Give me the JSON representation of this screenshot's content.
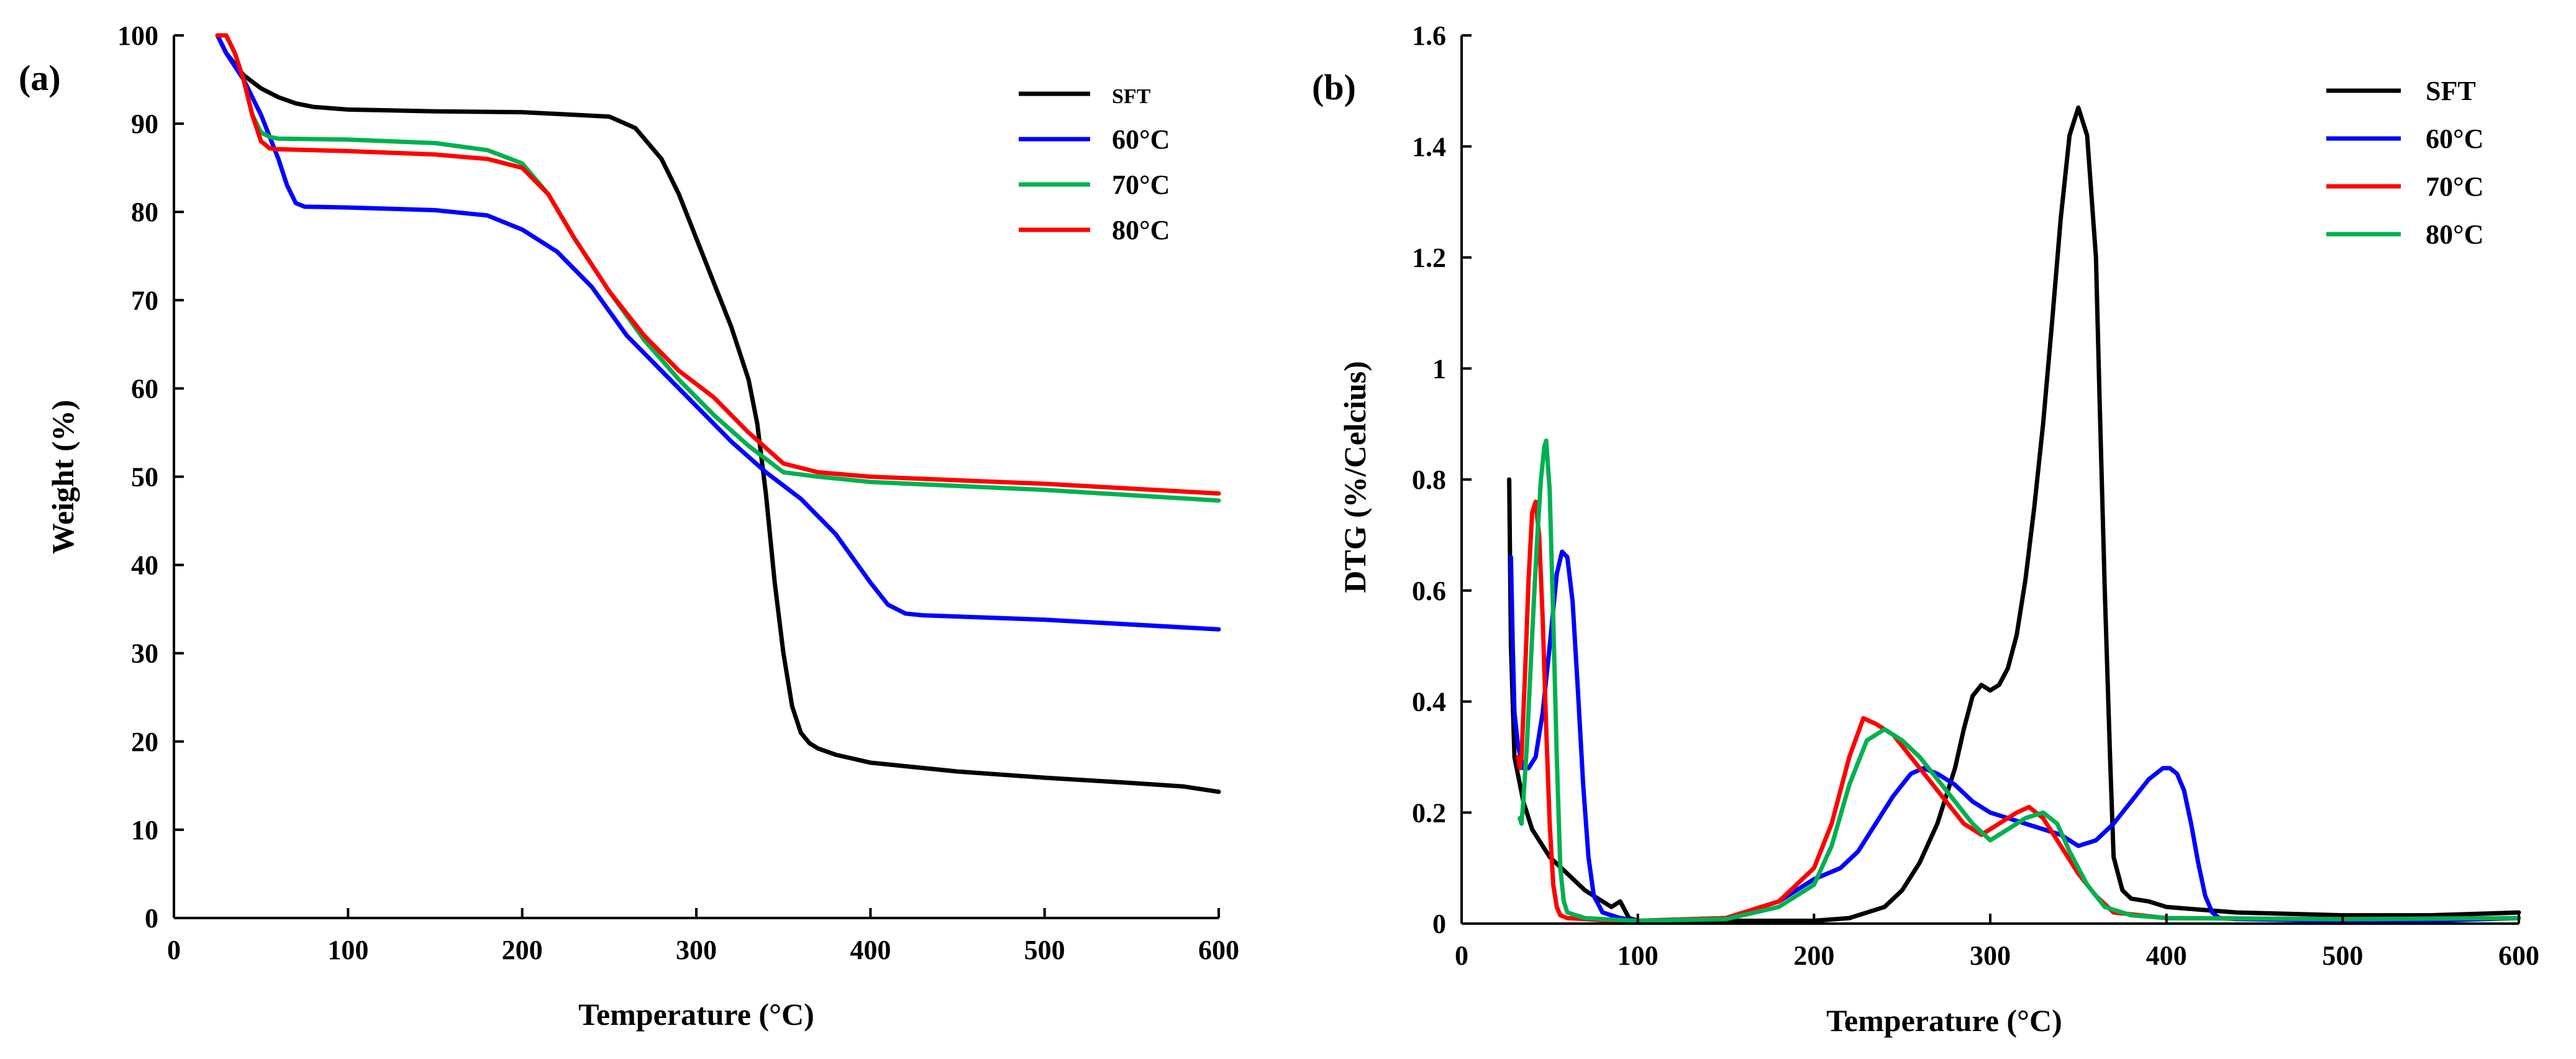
{
  "chart_data": [
    {
      "type": "line",
      "panel_label": "(a)",
      "xlabel": "Temperature  (°C)",
      "ylabel": "Weight (%)",
      "xlim": [
        0,
        600
      ],
      "ylim": [
        0,
        100
      ],
      "xticks": [
        0,
        100,
        200,
        300,
        400,
        500,
        600
      ],
      "yticks": [
        0,
        10,
        20,
        30,
        40,
        50,
        60,
        70,
        80,
        90,
        100
      ],
      "legend_position": "top-right",
      "series": [
        {
          "name": "SFT",
          "color": "#000000",
          "x": [
            25,
            30,
            40,
            50,
            60,
            70,
            80,
            100,
            150,
            200,
            250,
            265,
            280,
            290,
            300,
            310,
            320,
            330,
            335,
            340,
            345,
            350,
            355,
            360,
            365,
            370,
            380,
            400,
            450,
            500,
            550,
            580,
            600
          ],
          "y": [
            100,
            98,
            95.5,
            94,
            93,
            92.3,
            91.9,
            91.6,
            91.4,
            91.3,
            90.8,
            89.5,
            86,
            82,
            77,
            72,
            67,
            61,
            56,
            48,
            38,
            30,
            24,
            21,
            19.8,
            19.2,
            18.5,
            17.6,
            16.6,
            15.9,
            15.3,
            14.9,
            14.3
          ]
        },
        {
          "name": "60°C",
          "color": "#0000ff",
          "x": [
            25,
            30,
            40,
            50,
            60,
            65,
            70,
            75,
            100,
            150,
            180,
            200,
            220,
            240,
            260,
            280,
            300,
            320,
            340,
            360,
            380,
            400,
            410,
            420,
            430,
            500,
            600
          ],
          "y": [
            100,
            98,
            95,
            91,
            86,
            83,
            81,
            80.6,
            80.5,
            80.2,
            79.6,
            78,
            75.5,
            71.5,
            66,
            62,
            58,
            54,
            50.5,
            47.5,
            43.5,
            38,
            35.5,
            34.5,
            34.3,
            33.8,
            32.7
          ]
        },
        {
          "name": "70°C",
          "color": "#00b050",
          "x": [
            30,
            35,
            40,
            45,
            50,
            55,
            60,
            100,
            150,
            180,
            200,
            215,
            230,
            250,
            270,
            290,
            310,
            330,
            350,
            370,
            400,
            500,
            600
          ],
          "y": [
            100,
            98,
            95,
            91,
            89,
            88.5,
            88.3,
            88.2,
            87.8,
            87,
            85.5,
            82,
            77,
            71,
            65.5,
            61,
            57,
            53.5,
            50.5,
            50,
            49.4,
            48.5,
            47.3
          ]
        },
        {
          "name": "80°C",
          "color": "#ff0000",
          "x": [
            25,
            30,
            35,
            40,
            45,
            50,
            55,
            60,
            100,
            150,
            180,
            200,
            215,
            230,
            250,
            270,
            290,
            310,
            330,
            350,
            370,
            400,
            500,
            600
          ],
          "y": [
            100,
            100,
            98,
            95,
            91,
            88,
            87.2,
            87.1,
            86.9,
            86.5,
            86,
            85,
            82,
            77,
            71,
            66,
            62,
            59,
            55,
            51.5,
            50.5,
            50,
            49.2,
            48.1
          ]
        }
      ]
    },
    {
      "type": "line",
      "panel_label": "(b)",
      "xlabel": "Temperature  (°C)",
      "ylabel": "DTG  (%/Celcius)",
      "xlim": [
        0,
        600
      ],
      "ylim": [
        0,
        1.6
      ],
      "xticks": [
        0,
        100,
        200,
        300,
        400,
        500,
        600
      ],
      "yticks": [
        0,
        0.2,
        0.4,
        0.6,
        0.8,
        1,
        1.2,
        1.4,
        1.6
      ],
      "ytick_labels": [
        "0",
        "0.2",
        "0.4",
        "0.6",
        "0.8",
        "1",
        "1.2",
        "1.4",
        "1.6"
      ],
      "legend_position": "top-right",
      "series": [
        {
          "name": "SFT",
          "color": "#000000",
          "x": [
            27,
            28,
            30,
            35,
            40,
            50,
            60,
            70,
            80,
            85,
            90,
            95,
            100,
            150,
            200,
            220,
            240,
            250,
            260,
            270,
            280,
            285,
            290,
            295,
            300,
            305,
            310,
            315,
            320,
            325,
            330,
            335,
            340,
            345,
            350,
            355,
            360,
            362,
            365,
            368,
            370,
            375,
            380,
            390,
            400,
            420,
            440,
            500,
            550,
            600
          ],
          "y": [
            0.8,
            0.5,
            0.3,
            0.22,
            0.17,
            0.12,
            0.09,
            0.06,
            0.04,
            0.03,
            0.04,
            0.01,
            0.005,
            0.005,
            0.005,
            0.01,
            0.03,
            0.06,
            0.11,
            0.18,
            0.28,
            0.35,
            0.41,
            0.43,
            0.42,
            0.43,
            0.46,
            0.52,
            0.62,
            0.75,
            0.9,
            1.08,
            1.27,
            1.42,
            1.47,
            1.42,
            1.2,
            0.95,
            0.6,
            0.3,
            0.12,
            0.06,
            0.045,
            0.04,
            0.03,
            0.025,
            0.02,
            0.015,
            0.015,
            0.02
          ]
        },
        {
          "name": "60°C",
          "color": "#0000ff",
          "x": [
            28,
            29,
            30,
            32,
            35,
            38,
            42,
            46,
            50,
            54,
            57,
            60,
            63,
            66,
            69,
            72,
            75,
            80,
            90,
            100,
            150,
            180,
            200,
            215,
            225,
            235,
            245,
            255,
            262,
            270,
            280,
            290,
            300,
            320,
            340,
            350,
            360,
            370,
            380,
            390,
            398,
            402,
            406,
            410,
            414,
            418,
            422,
            426,
            430,
            440,
            500,
            550,
            600
          ],
          "y": [
            0.66,
            0.5,
            0.38,
            0.32,
            0.28,
            0.28,
            0.3,
            0.38,
            0.5,
            0.63,
            0.67,
            0.66,
            0.58,
            0.42,
            0.25,
            0.12,
            0.05,
            0.02,
            0.01,
            0.005,
            0.01,
            0.04,
            0.08,
            0.1,
            0.13,
            0.18,
            0.23,
            0.27,
            0.28,
            0.27,
            0.25,
            0.22,
            0.2,
            0.18,
            0.16,
            0.14,
            0.15,
            0.18,
            0.22,
            0.26,
            0.28,
            0.28,
            0.27,
            0.24,
            0.18,
            0.11,
            0.05,
            0.02,
            0.01,
            0.008,
            0.005,
            0.005,
            0.01
          ]
        },
        {
          "name": "70°C",
          "color": "#ff0000",
          "x": [
            32,
            33,
            34,
            36,
            38,
            40,
            42,
            44,
            46,
            48,
            50,
            52,
            54,
            56,
            60,
            70,
            80,
            100,
            150,
            180,
            200,
            210,
            220,
            228,
            235,
            245,
            255,
            265,
            275,
            285,
            295,
            305,
            315,
            322,
            330,
            340,
            350,
            360,
            370,
            400,
            500,
            600
          ],
          "y": [
            0.3,
            0.28,
            0.3,
            0.45,
            0.62,
            0.74,
            0.76,
            0.7,
            0.55,
            0.35,
            0.18,
            0.07,
            0.03,
            0.015,
            0.01,
            0.008,
            0.006,
            0.005,
            0.01,
            0.04,
            0.1,
            0.18,
            0.3,
            0.37,
            0.36,
            0.34,
            0.3,
            0.26,
            0.22,
            0.18,
            0.16,
            0.18,
            0.2,
            0.21,
            0.19,
            0.14,
            0.09,
            0.05,
            0.02,
            0.01,
            0.008,
            0.01
          ]
        },
        {
          "name": "80°C",
          "color": "#00b050",
          "x": [
            33,
            34,
            35,
            37,
            39,
            41,
            43,
            45,
            47,
            48,
            50,
            52,
            54,
            56,
            58,
            60,
            70,
            80,
            100,
            150,
            180,
            200,
            210,
            220,
            230,
            240,
            250,
            260,
            270,
            280,
            290,
            300,
            310,
            320,
            330,
            338,
            345,
            355,
            365,
            380,
            400,
            500,
            600
          ],
          "y": [
            0.19,
            0.18,
            0.22,
            0.32,
            0.45,
            0.58,
            0.7,
            0.8,
            0.86,
            0.87,
            0.78,
            0.55,
            0.3,
            0.1,
            0.04,
            0.02,
            0.01,
            0.008,
            0.005,
            0.008,
            0.03,
            0.07,
            0.14,
            0.25,
            0.33,
            0.35,
            0.33,
            0.3,
            0.26,
            0.22,
            0.18,
            0.15,
            0.17,
            0.19,
            0.2,
            0.18,
            0.13,
            0.07,
            0.03,
            0.015,
            0.01,
            0.008,
            0.01
          ]
        }
      ]
    }
  ]
}
